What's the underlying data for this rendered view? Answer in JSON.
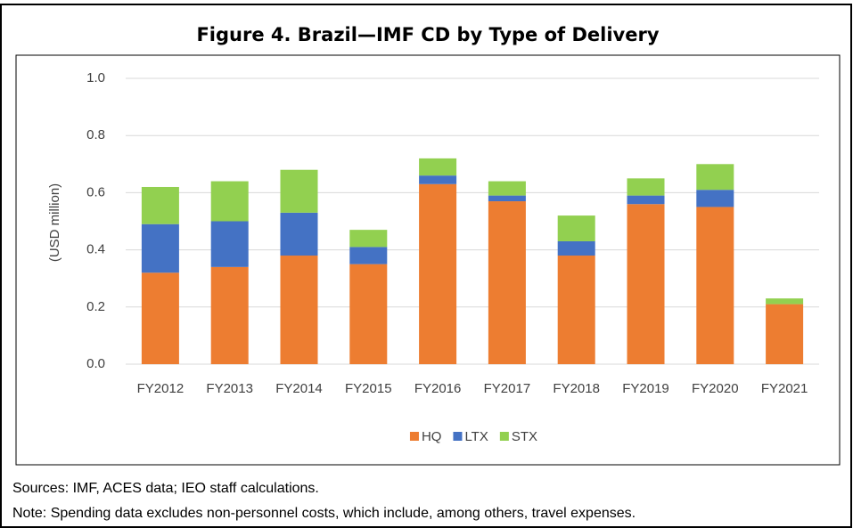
{
  "chart_data": {
    "type": "stacked-bar",
    "title": "Figure 4. Brazil—IMF CD by Type of Delivery",
    "y_label": "(USD million)",
    "categories": [
      "FY2012",
      "FY2013",
      "FY2014",
      "FY2015",
      "FY2016",
      "FY2017",
      "FY2018",
      "FY2019",
      "FY2020",
      "FY2021"
    ],
    "series": [
      {
        "name": "HQ",
        "color": "#ed7d31",
        "values": [
          0.32,
          0.34,
          0.38,
          0.35,
          0.63,
          0.57,
          0.38,
          0.56,
          0.55,
          0.21
        ]
      },
      {
        "name": "LTX",
        "color": "#4472c4",
        "values": [
          0.17,
          0.16,
          0.15,
          0.06,
          0.03,
          0.02,
          0.05,
          0.03,
          0.06,
          0
        ]
      },
      {
        "name": "STX",
        "color": "#92d050",
        "values": [
          0.13,
          0.14,
          0.15,
          0.06,
          0.06,
          0.05,
          0.09,
          0.06,
          0.09,
          0.02
        ]
      }
    ],
    "ylim": [
      0,
      1
    ],
    "yticks": [
      {
        "value": 0,
        "label": "0.0"
      },
      0.2,
      0.4,
      0.6,
      0.8,
      {
        "value": 1,
        "label": "1.0"
      }
    ],
    "grid": true,
    "legend": "bottom"
  },
  "sources": "Sources: IMF, ACES data; IEO staff calculations.",
  "note": "Note: Spending data excludes non-personnel costs, which include, among others, travel expenses."
}
